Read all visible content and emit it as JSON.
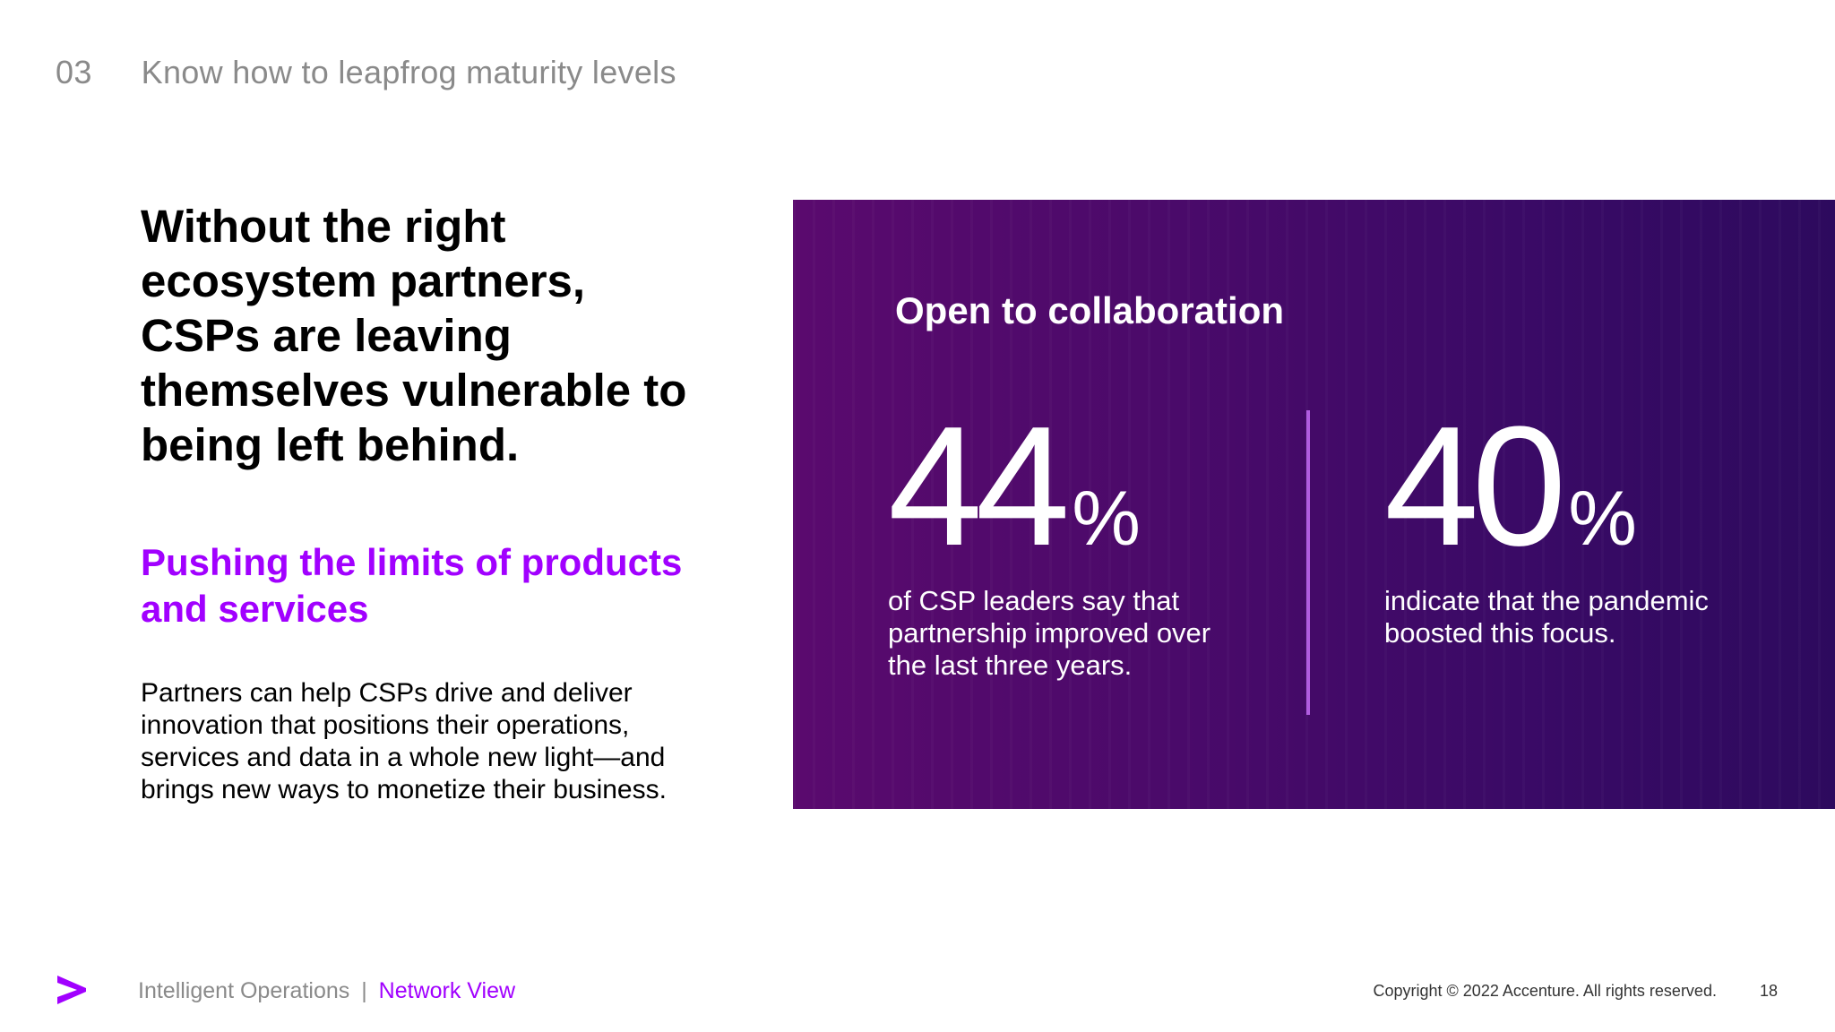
{
  "section": {
    "number": "03",
    "title": "Know how to leapfrog maturity levels"
  },
  "left": {
    "headline": "Without the right ecosystem partners, CSPs are leaving themselves vulnerable to being left behind.",
    "subhead": "Pushing the limits of products and services",
    "body": "Partners can help CSPs drive and deliver innovation that positions their operations, services and data in a whole new light—and brings new ways to monetize their business."
  },
  "panel": {
    "title": "Open to collaboration",
    "stats": [
      {
        "value": "44",
        "unit": "%",
        "caption": "of CSP leaders say that partnership improved over the last three years."
      },
      {
        "value": "40",
        "unit": "%",
        "caption": "indicate that the pandemic boosted this focus."
      }
    ]
  },
  "footer": {
    "brand_label": "Intelligent Operations",
    "separator": "|",
    "accent_label": "Network View",
    "copyright": "Copyright © 2022 Accenture. All rights reserved.",
    "page_number": "18"
  },
  "colors": {
    "accent": "#a100ff",
    "panel_gradient_start": "#5a0a6e",
    "panel_gradient_end": "#2d0a5e",
    "divider": "#b05ce0",
    "muted_text": "#8a8a8a"
  },
  "icons": {
    "footer_logo": "accenture-chevron-icon"
  }
}
